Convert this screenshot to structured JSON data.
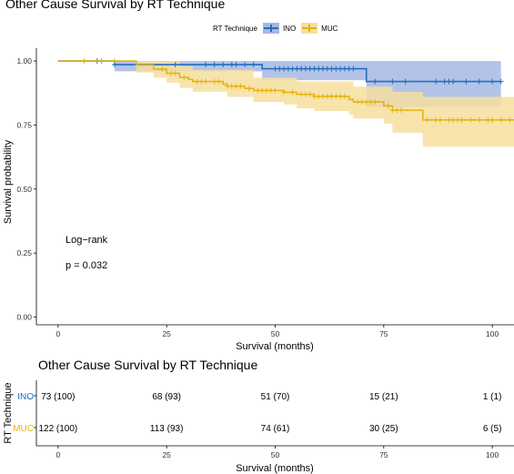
{
  "title": "Other Cause Survival by RT Technique",
  "legend": {
    "title": "RT Technique",
    "items": [
      {
        "label": "INO",
        "color": "#1f6fbd",
        "fill": "#a6b8e4"
      },
      {
        "label": "MUC",
        "color": "#e6b411",
        "fill": "#f6df9f"
      }
    ]
  },
  "annotation": {
    "test": "Log−rank",
    "pvalue": "p = 0.032"
  },
  "chart_data": {
    "type": "line",
    "subtype": "kaplan-meier",
    "title": "Other Cause Survival by RT Technique",
    "xlabel": "Survival (months)",
    "ylabel": "Survival probability",
    "xlim": [
      -5,
      105
    ],
    "ylim": [
      -0.03,
      1.05
    ],
    "xticks": [
      0,
      25,
      50,
      75,
      100
    ],
    "yticks": [
      0.0,
      0.25,
      0.5,
      0.75,
      1.0
    ],
    "ytick_labels": [
      "0.00",
      "0.25",
      "0.50",
      "0.75",
      "1.00"
    ],
    "grid": false,
    "legend_position": "top",
    "series": [
      {
        "name": "INO",
        "color": "#1f6fbd",
        "fill": "#a6b8e4",
        "steps": [
          [
            0,
            1.0
          ],
          [
            13,
            0.986
          ],
          [
            47,
            0.97
          ],
          [
            71,
            0.92
          ],
          [
            102,
            0.92
          ]
        ],
        "ci_lower": [
          [
            0,
            1.0
          ],
          [
            13,
            0.96
          ],
          [
            47,
            0.925
          ],
          [
            71,
            0.82
          ],
          [
            102,
            0.82
          ]
        ],
        "ci_upper": [
          [
            0,
            1.0
          ],
          [
            13,
            1.0
          ],
          [
            102,
            1.0
          ]
        ],
        "censored": [
          9,
          10,
          13,
          27,
          34,
          36,
          38,
          40,
          41,
          43,
          45,
          50,
          51,
          52,
          53,
          54,
          55,
          56,
          57,
          58,
          59,
          60,
          61,
          62,
          63,
          64,
          65,
          66,
          67,
          68,
          73,
          77,
          80,
          87,
          89,
          90,
          91,
          94,
          97,
          100,
          102
        ]
      },
      {
        "name": "MUC",
        "color": "#e6b411",
        "fill": "#f6df9f",
        "steps": [
          [
            0,
            1.0
          ],
          [
            18,
            0.984
          ],
          [
            22,
            0.968
          ],
          [
            25,
            0.952
          ],
          [
            28,
            0.936
          ],
          [
            30,
            0.928
          ],
          [
            31,
            0.92
          ],
          [
            38,
            0.91
          ],
          [
            39,
            0.902
          ],
          [
            43,
            0.893
          ],
          [
            45,
            0.885
          ],
          [
            52,
            0.878
          ],
          [
            55,
            0.87
          ],
          [
            59,
            0.862
          ],
          [
            67,
            0.85
          ],
          [
            68,
            0.84
          ],
          [
            75,
            0.825
          ],
          [
            77,
            0.808
          ],
          [
            84,
            0.77
          ],
          [
            105,
            0.77
          ]
        ],
        "ci_lower": [
          [
            0,
            1.0
          ],
          [
            18,
            0.955
          ],
          [
            22,
            0.935
          ],
          [
            25,
            0.915
          ],
          [
            28,
            0.895
          ],
          [
            31,
            0.88
          ],
          [
            39,
            0.86
          ],
          [
            45,
            0.84
          ],
          [
            52,
            0.83
          ],
          [
            55,
            0.815
          ],
          [
            59,
            0.805
          ],
          [
            67,
            0.79
          ],
          [
            68,
            0.775
          ],
          [
            75,
            0.755
          ],
          [
            77,
            0.72
          ],
          [
            84,
            0.665
          ],
          [
            105,
            0.665
          ]
        ],
        "ci_upper": [
          [
            0,
            1.0
          ],
          [
            18,
            1.0
          ],
          [
            28,
            0.98
          ],
          [
            31,
            0.965
          ],
          [
            45,
            0.935
          ],
          [
            55,
            0.92
          ],
          [
            68,
            0.9
          ],
          [
            77,
            0.88
          ],
          [
            84,
            0.86
          ],
          [
            105,
            0.86
          ]
        ],
        "censored": [
          6,
          10,
          13,
          24,
          26,
          27,
          29,
          32,
          33,
          34,
          36,
          37,
          39,
          40,
          41,
          42,
          44,
          46,
          47,
          48,
          49,
          50,
          52,
          54,
          56,
          57,
          58,
          59,
          60,
          61,
          62,
          63,
          64,
          65,
          66,
          69,
          70,
          71,
          72,
          73,
          76,
          77,
          78,
          79,
          85,
          87,
          88,
          90,
          91,
          92,
          93,
          95,
          97,
          99,
          100,
          102,
          104
        ]
      }
    ]
  },
  "risk_table": {
    "title": "Other Cause Survival by RT Technique",
    "ylabel": "RT Technique",
    "xlabel": "Survival (months)",
    "xticks": [
      0,
      25,
      50,
      75,
      100
    ],
    "rows": [
      {
        "label": "INO",
        "color": "#1f6fbd",
        "values": [
          "73 (100)",
          "68 (93)",
          "51 (70)",
          "15 (21)",
          "1 (1)"
        ]
      },
      {
        "label": "MUC",
        "color": "#e6b411",
        "values": [
          "122 (100)",
          "113 (93)",
          "74 (61)",
          "30 (25)",
          "6 (5)"
        ]
      }
    ]
  }
}
